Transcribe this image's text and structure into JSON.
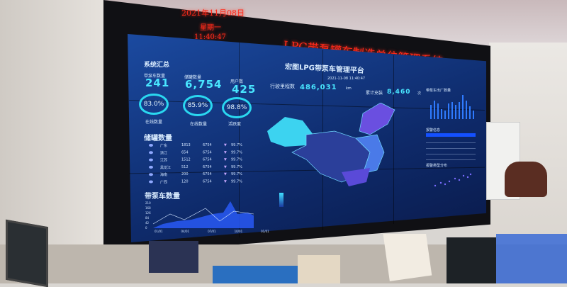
{
  "led_banner": {
    "date": "2021年11月08日",
    "weekday": "星期一",
    "time": "11:40:47",
    "title": "LPG带泵罐车制造单位管理系统"
  },
  "dashboard": {
    "platform_title": "宏图LPG带泵车管理平台",
    "platform_datetime": "2021-11-08 11:40:47",
    "summary": {
      "heading": "系统汇总",
      "stats": [
        {
          "label": "带泵车数量",
          "value": "241"
        },
        {
          "label": "储罐数量",
          "value": "6,754"
        },
        {
          "label": "用户数",
          "value": "425"
        }
      ],
      "rings": [
        {
          "value": "83.0%",
          "label": "在线数量"
        },
        {
          "value": "85.9%",
          "label": "在线数量"
        },
        {
          "value": "98.8%",
          "label": "活跃度"
        }
      ]
    },
    "mileage": {
      "label": "行驶里程数",
      "value": "486,031",
      "unit": "km"
    },
    "fills": {
      "label": "累计充装",
      "value": "8,460",
      "unit": "次"
    },
    "tanks": {
      "heading": "储罐数量",
      "rows": [
        {
          "region": "广东",
          "a": "1813",
          "b": "6754",
          "pct": "99.7%"
        },
        {
          "region": "浙江",
          "a": "654",
          "b": "6754",
          "pct": "99.7%"
        },
        {
          "region": "江苏",
          "a": "1512",
          "b": "6754",
          "pct": "99.7%"
        },
        {
          "region": "黑龙江",
          "a": "512",
          "b": "6754",
          "pct": "99.7%"
        },
        {
          "region": "海南",
          "a": "200",
          "b": "6754",
          "pct": "99.7%"
        },
        {
          "region": "广西",
          "a": "120",
          "b": "6754",
          "pct": "99.7%"
        }
      ]
    },
    "pump_chart": {
      "heading": "带泵车数量",
      "y_ticks": [
        "210",
        "168",
        "126",
        "84",
        "42",
        "0"
      ],
      "x_ticks": [
        "01/01",
        "04/01",
        "07/01",
        "10/01",
        "01/01"
      ]
    },
    "right_panels": {
      "bar_title": "带泵车出厂数量",
      "table_title": "报警信息",
      "scatter_title": "报警类型分布"
    }
  },
  "colors": {
    "screen": "#1b4aa0",
    "accent": "#49e6ff",
    "led": "#ff2a1a"
  }
}
